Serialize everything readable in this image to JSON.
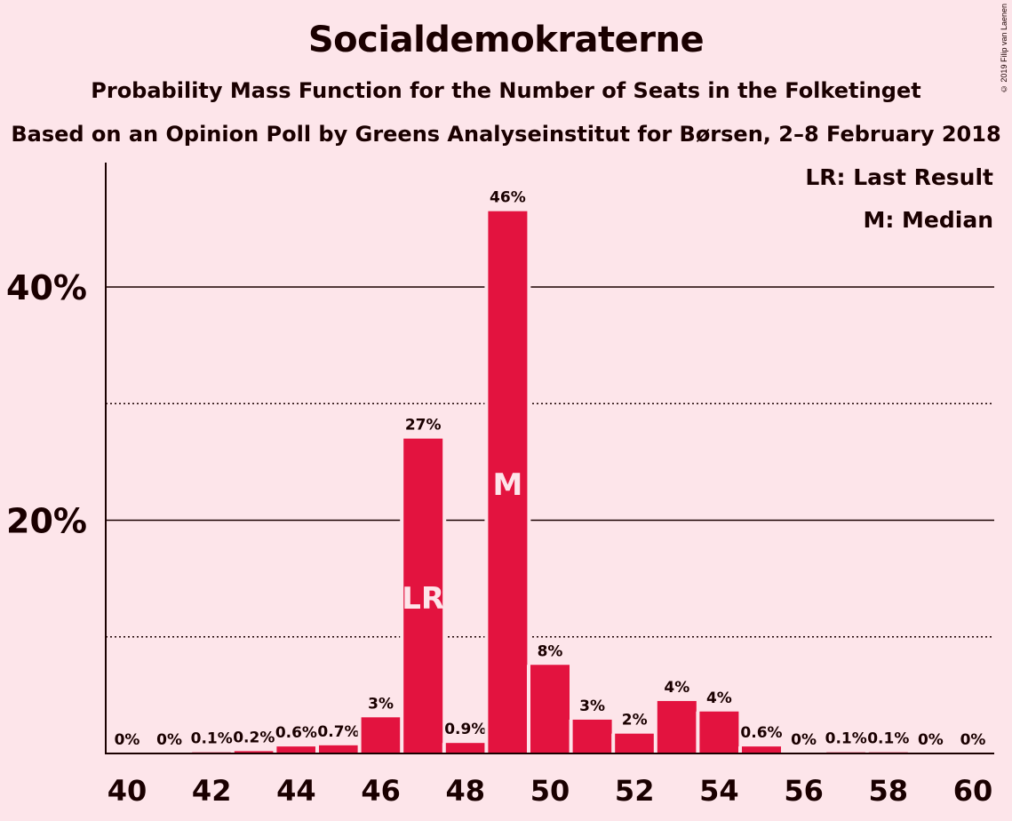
{
  "title": "Socialdemokraterne",
  "subtitle": "Probability Mass Function for the Number of Seats in the Folketinget",
  "subtitle2": "Based on an Opinion Poll by Greens Analyseinstitut for Børsen, 2–8 February 2018",
  "copyright": "© 2019 Filip van Laenen",
  "legend": {
    "lr": "LR: Last Result",
    "median": "M: Median"
  },
  "colors": {
    "bar": "#e3133f",
    "background": "#fde5ea",
    "text": "#1a0000"
  },
  "chart_data": {
    "type": "bar",
    "x": [
      40,
      41,
      42,
      43,
      44,
      45,
      46,
      47,
      48,
      49,
      50,
      51,
      52,
      53,
      54,
      55,
      56,
      57,
      58,
      59,
      60
    ],
    "values": [
      0,
      0,
      0.1,
      0.2,
      0.6,
      0.7,
      3.1,
      27,
      0.9,
      46.5,
      7.6,
      2.9,
      1.7,
      4.5,
      3.6,
      0.6,
      0,
      0.1,
      0.1,
      0,
      0
    ],
    "data_labels": [
      "0%",
      "0%",
      "0.1%",
      "0.2%",
      "0.6%",
      "0.7%",
      "3%",
      "27%",
      "0.9%",
      "46%",
      "8%",
      "3%",
      "2%",
      "4%",
      "4%",
      "0.6%",
      "0%",
      "0.1%",
      "0.1%",
      "0%",
      "0%"
    ],
    "x_ticks": [
      "40",
      "42",
      "44",
      "46",
      "48",
      "50",
      "52",
      "54",
      "56",
      "58",
      "60"
    ],
    "y_ticks": [
      "20%",
      "40%"
    ],
    "ylim": [
      0,
      50
    ],
    "last_result_seat": 47,
    "median_seat": 49,
    "last_result_label": "LR",
    "median_label": "M",
    "grid": {
      "solid": [
        20,
        40
      ],
      "dotted": [
        10,
        30
      ]
    }
  }
}
